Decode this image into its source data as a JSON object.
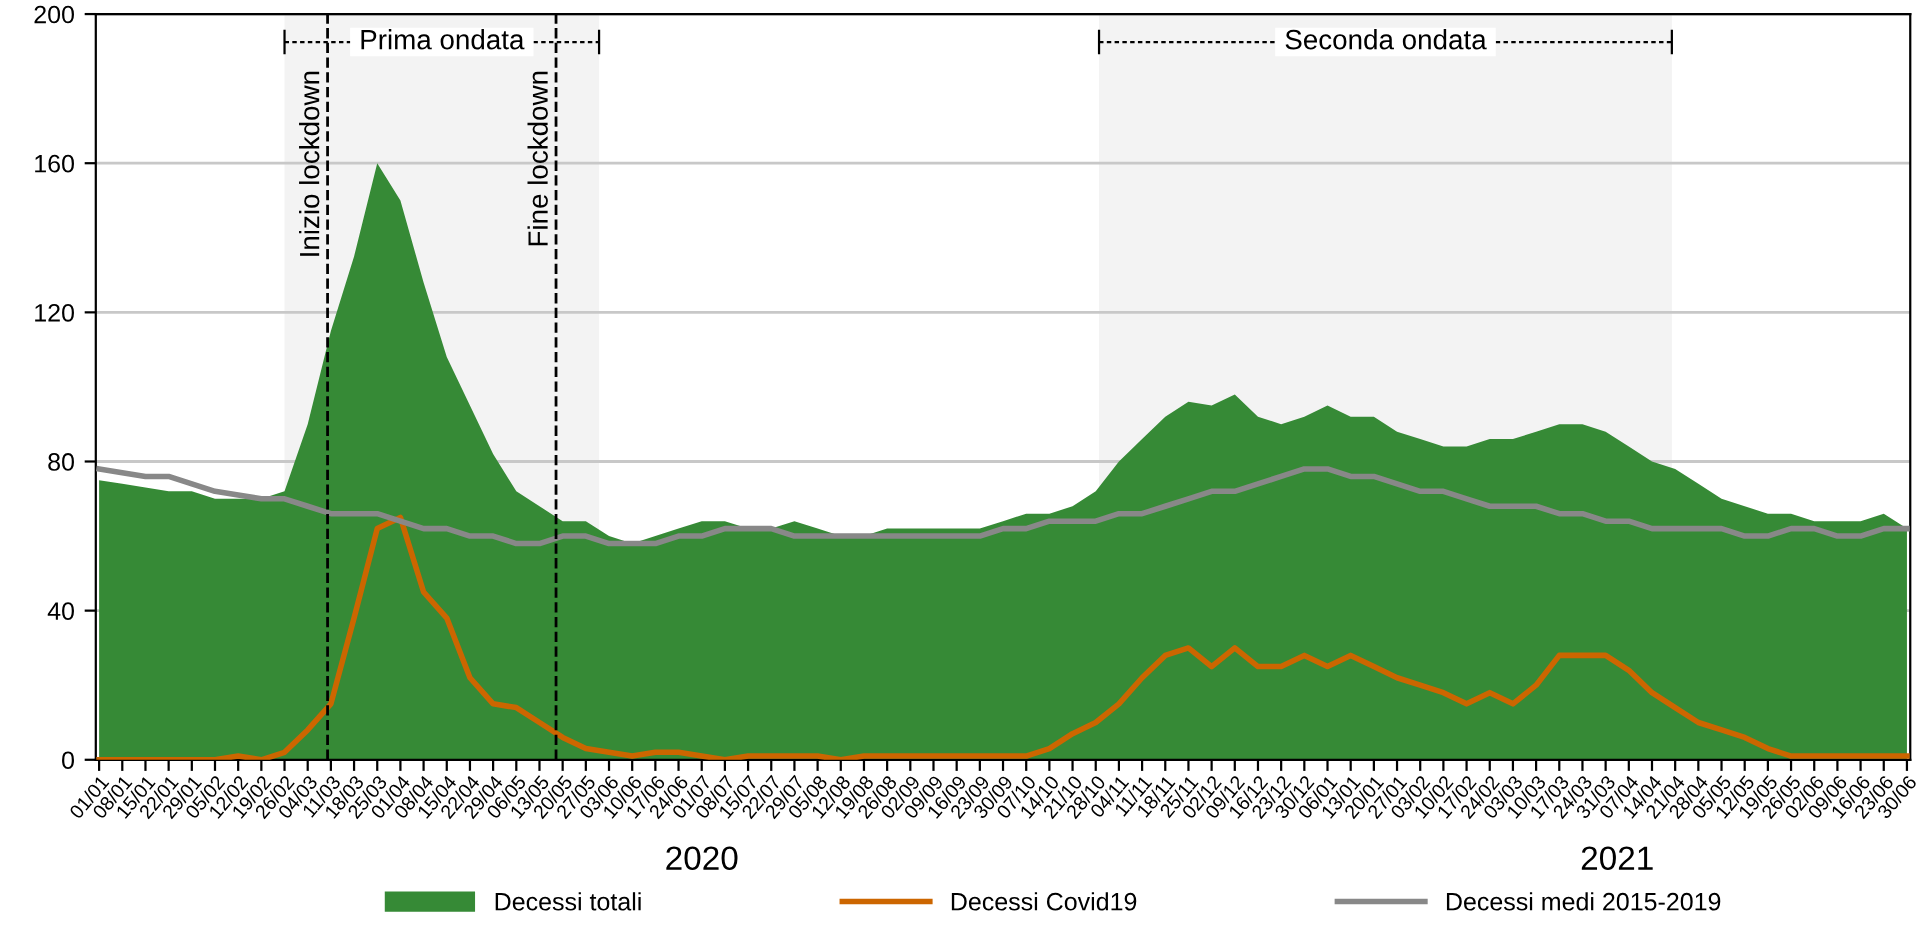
{
  "chart_data": {
    "type": "line",
    "x": [
      "2020-01-01",
      "2020-01-08",
      "2020-01-15",
      "2020-01-22",
      "2020-01-29",
      "2020-02-05",
      "2020-02-12",
      "2020-02-19",
      "2020-02-26",
      "2020-03-04",
      "2020-03-11",
      "2020-03-18",
      "2020-03-25",
      "2020-04-01",
      "2020-04-08",
      "2020-04-15",
      "2020-04-22",
      "2020-04-29",
      "2020-05-06",
      "2020-05-13",
      "2020-05-20",
      "2020-05-27",
      "2020-06-03",
      "2020-06-10",
      "2020-06-17",
      "2020-06-24",
      "2020-07-01",
      "2020-07-08",
      "2020-07-15",
      "2020-07-22",
      "2020-07-29",
      "2020-08-05",
      "2020-08-12",
      "2020-08-19",
      "2020-08-26",
      "2020-09-02",
      "2020-09-09",
      "2020-09-16",
      "2020-09-23",
      "2020-09-30",
      "2020-10-07",
      "2020-10-14",
      "2020-10-21",
      "2020-10-28",
      "2020-11-04",
      "2020-11-11",
      "2020-11-18",
      "2020-11-25",
      "2020-12-02",
      "2020-12-09",
      "2020-12-16",
      "2020-12-23",
      "2020-12-30",
      "2021-01-06",
      "2021-01-13",
      "2021-01-20",
      "2021-01-27",
      "2021-02-03",
      "2021-02-10",
      "2021-02-17",
      "2021-02-24",
      "2021-03-03",
      "2021-03-10",
      "2021-03-17",
      "2021-03-24",
      "2021-03-31",
      "2021-04-07",
      "2021-04-14",
      "2021-04-21",
      "2021-04-28",
      "2021-05-05",
      "2021-05-12",
      "2021-05-19",
      "2021-05-26",
      "2021-06-02",
      "2021-06-09",
      "2021-06-16",
      "2021-06-23",
      "2021-06-30"
    ],
    "series": [
      {
        "name": "Decessi totali",
        "type": "area",
        "color": "#368a36",
        "values": [
          75,
          74,
          73,
          72,
          72,
          70,
          70,
          70,
          72,
          90,
          115,
          135,
          160,
          150,
          128,
          108,
          95,
          82,
          72,
          68,
          64,
          64,
          60,
          58,
          60,
          62,
          64,
          64,
          62,
          62,
          64,
          62,
          60,
          60,
          62,
          62,
          62,
          62,
          62,
          64,
          66,
          66,
          68,
          72,
          80,
          86,
          92,
          96,
          95,
          98,
          92,
          90,
          92,
          95,
          92,
          92,
          88,
          86,
          84,
          84,
          86,
          86,
          88,
          90,
          90,
          88,
          84,
          80,
          78,
          74,
          70,
          68,
          66,
          66,
          64,
          64,
          64,
          66,
          62
        ]
      },
      {
        "name": "Decessi Covid19",
        "color": "#cc6600",
        "values": [
          0,
          0,
          0,
          0,
          0,
          0,
          1,
          0,
          2,
          8,
          15,
          38,
          62,
          65,
          45,
          38,
          22,
          15,
          14,
          10,
          6,
          3,
          2,
          1,
          2,
          2,
          1,
          0,
          1,
          1,
          1,
          1,
          0,
          1,
          1,
          1,
          1,
          1,
          1,
          1,
          1,
          3,
          7,
          10,
          15,
          22,
          28,
          30,
          25,
          30,
          25,
          25,
          28,
          25,
          28,
          25,
          22,
          20,
          18,
          15,
          18,
          15,
          20,
          28,
          28,
          28,
          24,
          18,
          14,
          10,
          8,
          6,
          3,
          1,
          1,
          1,
          1,
          1,
          1
        ]
      },
      {
        "name": "Decessi medi 2015-2019",
        "color": "#888888",
        "values": [
          78,
          77,
          76,
          76,
          74,
          72,
          71,
          70,
          70,
          68,
          66,
          66,
          66,
          64,
          62,
          62,
          60,
          60,
          58,
          58,
          60,
          60,
          58,
          58,
          58,
          60,
          60,
          62,
          62,
          62,
          60,
          60,
          60,
          60,
          60,
          60,
          60,
          60,
          60,
          62,
          62,
          64,
          64,
          64,
          66,
          66,
          68,
          70,
          72,
          72,
          74,
          76,
          78,
          78,
          76,
          76,
          74,
          72,
          72,
          70,
          68,
          68,
          68,
          66,
          66,
          64,
          64,
          62,
          62,
          62,
          62,
          60,
          60,
          62,
          62,
          60,
          60,
          62,
          62
        ]
      }
    ],
    "xlim": [
      "2019-12-31",
      "2021-07-01"
    ],
    "xticks": [
      {
        "value": "2020-01-01",
        "label": "01/01"
      },
      {
        "value": "2020-01-08",
        "label": "08/01"
      },
      {
        "value": "2020-01-15",
        "label": "15/01"
      },
      {
        "value": "2020-01-22",
        "label": "22/01"
      },
      {
        "value": "2020-01-29",
        "label": "29/01"
      },
      {
        "value": "2020-02-05",
        "label": "05/02"
      },
      {
        "value": "2020-02-12",
        "label": "12/02"
      },
      {
        "value": "2020-02-19",
        "label": "19/02"
      },
      {
        "value": "2020-02-26",
        "label": "26/02"
      },
      {
        "value": "2020-03-04",
        "label": "04/03"
      },
      {
        "value": "2020-03-11",
        "label": "11/03"
      },
      {
        "value": "2020-03-18",
        "label": "18/03"
      },
      {
        "value": "2020-03-25",
        "label": "25/03"
      },
      {
        "value": "2020-04-01",
        "label": "01/04"
      },
      {
        "value": "2020-04-08",
        "label": "08/04"
      },
      {
        "value": "2020-04-15",
        "label": "15/04"
      },
      {
        "value": "2020-04-22",
        "label": "22/04"
      },
      {
        "value": "2020-04-29",
        "label": "29/04"
      },
      {
        "value": "2020-05-06",
        "label": "06/05"
      },
      {
        "value": "2020-05-13",
        "label": "13/05"
      },
      {
        "value": "2020-05-20",
        "label": "20/05"
      },
      {
        "value": "2020-05-27",
        "label": "27/05"
      },
      {
        "value": "2020-06-03",
        "label": "03/06"
      },
      {
        "value": "2020-06-10",
        "label": "10/06"
      },
      {
        "value": "2020-06-17",
        "label": "17/06"
      },
      {
        "value": "2020-06-24",
        "label": "24/06"
      },
      {
        "value": "2020-07-01",
        "label": "01/07"
      },
      {
        "value": "2020-07-08",
        "label": "08/07"
      },
      {
        "value": "2020-07-15",
        "label": "15/07"
      },
      {
        "value": "2020-07-22",
        "label": "22/07"
      },
      {
        "value": "2020-07-29",
        "label": "29/07"
      },
      {
        "value": "2020-08-05",
        "label": "05/08"
      },
      {
        "value": "2020-08-12",
        "label": "12/08"
      },
      {
        "value": "2020-08-19",
        "label": "19/08"
      },
      {
        "value": "2020-08-26",
        "label": "26/08"
      },
      {
        "value": "2020-09-02",
        "label": "02/09"
      },
      {
        "value": "2020-09-09",
        "label": "09/09"
      },
      {
        "value": "2020-09-16",
        "label": "16/09"
      },
      {
        "value": "2020-09-23",
        "label": "23/09"
      },
      {
        "value": "2020-09-30",
        "label": "30/09"
      },
      {
        "value": "2020-10-07",
        "label": "07/10"
      },
      {
        "value": "2020-10-14",
        "label": "14/10"
      },
      {
        "value": "2020-10-21",
        "label": "21/10"
      },
      {
        "value": "2020-10-28",
        "label": "28/10"
      },
      {
        "value": "2020-11-04",
        "label": "04/11"
      },
      {
        "value": "2020-11-11",
        "label": "11/11"
      },
      {
        "value": "2020-11-18",
        "label": "18/11"
      },
      {
        "value": "2020-11-25",
        "label": "25/11"
      },
      {
        "value": "2020-12-02",
        "label": "02/12"
      },
      {
        "value": "2020-12-09",
        "label": "09/12"
      },
      {
        "value": "2020-12-16",
        "label": "16/12"
      },
      {
        "value": "2020-12-23",
        "label": "23/12"
      },
      {
        "value": "2020-12-30",
        "label": "30/12"
      },
      {
        "value": "2021-01-06",
        "label": "06/01"
      },
      {
        "value": "2021-01-13",
        "label": "13/01"
      },
      {
        "value": "2021-01-20",
        "label": "20/01"
      },
      {
        "value": "2021-01-27",
        "label": "27/01"
      },
      {
        "value": "2021-02-03",
        "label": "03/02"
      },
      {
        "value": "2021-02-10",
        "label": "10/02"
      },
      {
        "value": "2021-02-17",
        "label": "17/02"
      },
      {
        "value": "2021-02-24",
        "label": "24/02"
      },
      {
        "value": "2021-03-03",
        "label": "03/03"
      },
      {
        "value": "2021-03-10",
        "label": "10/03"
      },
      {
        "value": "2021-03-17",
        "label": "17/03"
      },
      {
        "value": "2021-03-24",
        "label": "24/03"
      },
      {
        "value": "2021-03-31",
        "label": "31/03"
      },
      {
        "value": "2021-04-07",
        "label": "07/04"
      },
      {
        "value": "2021-04-14",
        "label": "14/04"
      },
      {
        "value": "2021-04-21",
        "label": "21/04"
      },
      {
        "value": "2021-04-28",
        "label": "28/04"
      },
      {
        "value": "2021-05-05",
        "label": "05/05"
      },
      {
        "value": "2021-05-12",
        "label": "12/05"
      },
      {
        "value": "2021-05-19",
        "label": "19/05"
      },
      {
        "value": "2021-05-26",
        "label": "26/05"
      },
      {
        "value": "2021-06-02",
        "label": "02/06"
      },
      {
        "value": "2021-06-09",
        "label": "09/06"
      },
      {
        "value": "2021-06-16",
        "label": "16/06"
      },
      {
        "value": "2021-06-23",
        "label": "23/06"
      },
      {
        "value": "2021-06-30",
        "label": "30/06"
      }
    ],
    "ylim": [
      0,
      200
    ],
    "yticks": [
      0,
      40,
      80,
      120,
      160,
      200
    ],
    "grid": "y",
    "legend": "bottom",
    "marker": "none",
    "line_style": "solid",
    "ref_lines": [
      {
        "axis": "x",
        "value": "2020-03-10",
        "label": "Inizio lockdown",
        "color": "#000000",
        "line_style": "dashed"
      },
      {
        "axis": "x",
        "value": "2020-05-18",
        "label": "Fine lockdown",
        "color": "#000000",
        "line_style": "dashed"
      }
    ],
    "bands": [
      {
        "axis": "x",
        "from": "2020-02-26",
        "to": "2020-05-31",
        "label": "Prima ondata"
      },
      {
        "axis": "x",
        "from": "2020-10-29",
        "to": "2021-04-20",
        "label": "Seconda ondata"
      }
    ],
    "annotations": [
      "2020",
      "2021"
    ]
  }
}
